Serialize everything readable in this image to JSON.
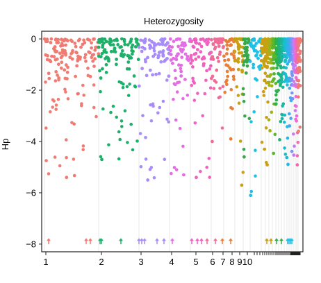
{
  "chart_data": {
    "type": "scatter",
    "title": "Heterozygosity",
    "xlabel": "",
    "ylabel": "Hp",
    "ylim": [
      -8.3,
      0.3
    ],
    "yticks": [
      0,
      -2,
      -4,
      -6,
      -8
    ],
    "ytick_labels": [
      "0",
      "−2",
      "−4",
      "−6",
      "−8"
    ],
    "x_chromosome_labels": [
      "1",
      "2",
      "3",
      "4",
      "5",
      "6",
      "7",
      "8",
      "9",
      "10"
    ],
    "grid": "vertical chromosome boundaries (light grey)",
    "legend": "none",
    "arrow_y_value": -7.9,
    "arrow_meaning": "values below plotted range",
    "series": [
      {
        "chrom": "1",
        "color": "#f07b72",
        "min_value": -5.4
      },
      {
        "chrom": "2",
        "color": "#1eb06a",
        "min_value": -4.7
      },
      {
        "chrom": "3",
        "color": "#a88cf7",
        "min_value": -5.5
      },
      {
        "chrom": "4",
        "color": "#e36ee3",
        "min_value": -5.3
      },
      {
        "chrom": "5",
        "color": "#f062c1",
        "min_value": -5.4
      },
      {
        "chrom": "6",
        "color": "#f06c98",
        "min_value": -4.0
      },
      {
        "chrom": "7",
        "color": "#e67f38",
        "min_value": -3.9
      },
      {
        "chrom": "8",
        "color": "#c9a013",
        "min_value": -5.7
      },
      {
        "chrom": "9",
        "color": "#38a84a",
        "min_value": -4.6
      },
      {
        "chrom": "10",
        "color": "#1fc0e6",
        "min_value": -6.1
      }
    ]
  }
}
